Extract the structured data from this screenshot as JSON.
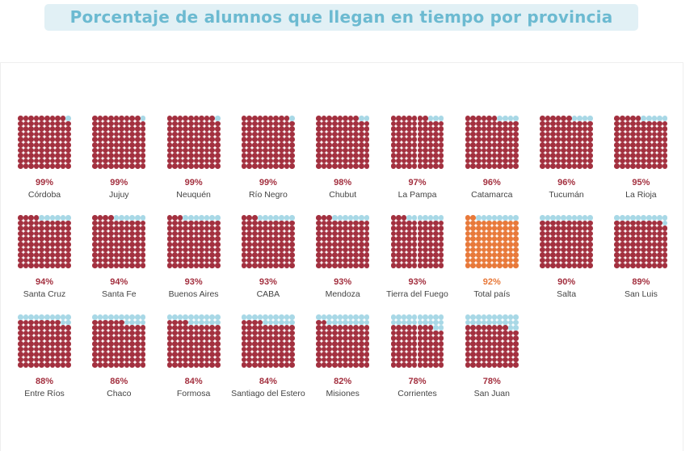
{
  "title": "Porcentaje de alumnos que llegan en tiempo por provincia",
  "chart_data": {
    "type": "waffle",
    "title": "Porcentaje de alumnos que llegan en tiempo por provincia",
    "grid": [
      10,
      10
    ],
    "colors": {
      "filled": "#a3303f",
      "highlight": "#e8793a",
      "empty": "#a8d8e6"
    },
    "items": [
      {
        "name": "Córdoba",
        "value": 99,
        "label": "99%"
      },
      {
        "name": "Jujuy",
        "value": 99,
        "label": "99%"
      },
      {
        "name": "Neuquén",
        "value": 99,
        "label": "99%"
      },
      {
        "name": "Río Negro",
        "value": 99,
        "label": "99%"
      },
      {
        "name": "Chubut",
        "value": 98,
        "label": "98%"
      },
      {
        "name": "La Pampa",
        "value": 97,
        "label": "97%"
      },
      {
        "name": "Catamarca",
        "value": 96,
        "label": "96%"
      },
      {
        "name": "Tucumán",
        "value": 96,
        "label": "96%"
      },
      {
        "name": "La Rioja",
        "value": 95,
        "label": "95%"
      },
      {
        "name": "Santa Cruz",
        "value": 94,
        "label": "94%"
      },
      {
        "name": "Santa Fe",
        "value": 94,
        "label": "94%"
      },
      {
        "name": "Buenos Aires",
        "value": 93,
        "label": "93%"
      },
      {
        "name": "CABA",
        "value": 93,
        "label": "93%"
      },
      {
        "name": "Mendoza",
        "value": 93,
        "label": "93%"
      },
      {
        "name": "Tierra del Fuego",
        "value": 93,
        "label": "93%"
      },
      {
        "name": "Total país",
        "value": 92,
        "label": "92%",
        "highlight": true
      },
      {
        "name": "Salta",
        "value": 90,
        "label": "90%"
      },
      {
        "name": "San Luis",
        "value": 89,
        "label": "89%"
      },
      {
        "name": "Entre Ríos",
        "value": 88,
        "label": "88%"
      },
      {
        "name": "Chaco",
        "value": 86,
        "label": "86%"
      },
      {
        "name": "Formosa",
        "value": 84,
        "label": "84%"
      },
      {
        "name": "Santiago del Estero",
        "value": 84,
        "label": "84%"
      },
      {
        "name": "Misiones",
        "value": 82,
        "label": "82%"
      },
      {
        "name": "Corrientes",
        "value": 78,
        "label": "78%"
      },
      {
        "name": "San Juan",
        "value": 78,
        "label": "78%"
      }
    ]
  }
}
